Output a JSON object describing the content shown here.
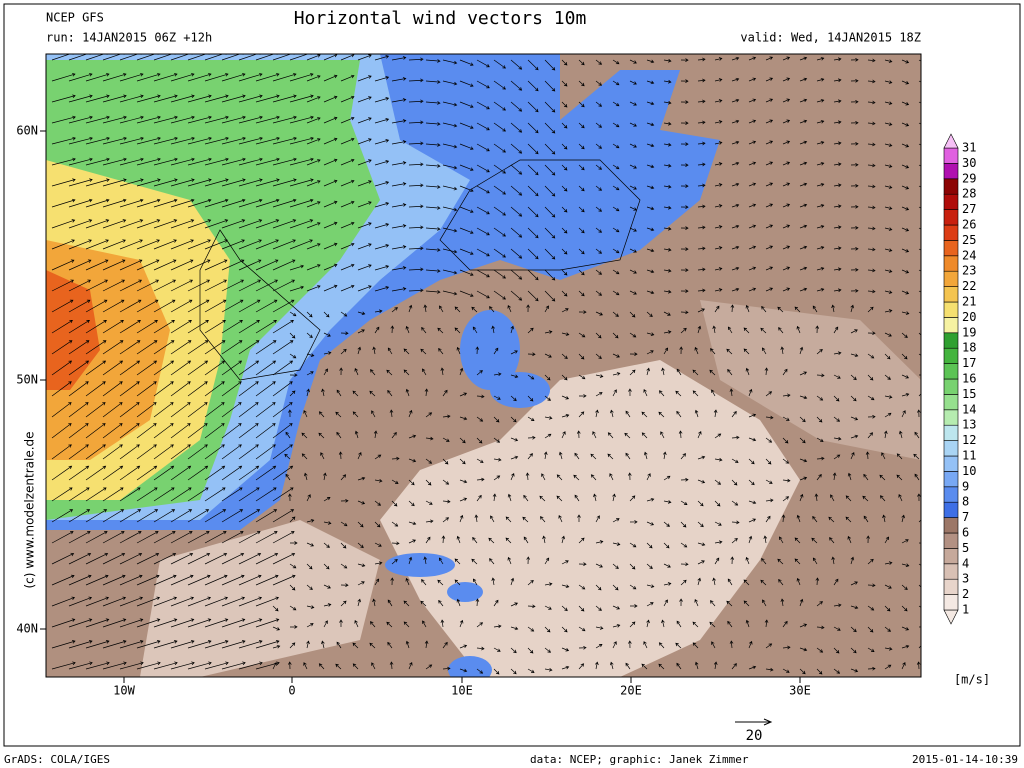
{
  "header": {
    "model": "NCEP GFS",
    "run": "run: 14JAN2015 06Z +12h",
    "title": "Horizontal wind vectors 10m",
    "valid": "valid: Wed, 14JAN2015 18Z"
  },
  "map": {
    "lat_labels": [
      "60N",
      "50N",
      "40N"
    ],
    "lon_labels": [
      "10W",
      "0",
      "10E",
      "20E",
      "30E"
    ],
    "watermark": "(c) www.modelzentrale.de",
    "reference_vector": "20"
  },
  "legend": {
    "unit": "[m/s]",
    "levels": [
      {
        "label": "1",
        "color": "#f4e9e3"
      },
      {
        "label": "2",
        "color": "#e8d5cb"
      },
      {
        "label": "3",
        "color": "#d8c0b4"
      },
      {
        "label": "4",
        "color": "#c6a99b"
      },
      {
        "label": "5",
        "color": "#b39183"
      },
      {
        "label": "6",
        "color": "#9c7767"
      },
      {
        "label": "7",
        "color": "#3e6fe6"
      },
      {
        "label": "8",
        "color": "#5a8cef"
      },
      {
        "label": "9",
        "color": "#78a8f4"
      },
      {
        "label": "10",
        "color": "#94c1f6"
      },
      {
        "label": "11",
        "color": "#a9d4f4"
      },
      {
        "label": "12",
        "color": "#bde6ee"
      },
      {
        "label": "13",
        "color": "#b6ecb0"
      },
      {
        "label": "14",
        "color": "#96e08e"
      },
      {
        "label": "15",
        "color": "#78d270"
      },
      {
        "label": "16",
        "color": "#5cc455"
      },
      {
        "label": "17",
        "color": "#44b43e"
      },
      {
        "label": "18",
        "color": "#30a030"
      },
      {
        "label": "19",
        "color": "#f6f2a2"
      },
      {
        "label": "20",
        "color": "#f6e070"
      },
      {
        "label": "21",
        "color": "#f4c450"
      },
      {
        "label": "22",
        "color": "#f2a63a"
      },
      {
        "label": "23",
        "color": "#ef8a2a"
      },
      {
        "label": "24",
        "color": "#e8641e"
      },
      {
        "label": "25",
        "color": "#dc3c14"
      },
      {
        "label": "26",
        "color": "#c8200e"
      },
      {
        "label": "27",
        "color": "#b00c0a"
      },
      {
        "label": "28",
        "color": "#8c0404"
      },
      {
        "label": "29",
        "color": "#b010b0"
      },
      {
        "label": "30",
        "color": "#e060e0"
      },
      {
        "label": "31",
        "color": "#f6c0f6"
      }
    ]
  },
  "footer": {
    "software": "GrADS: COLA/IGES",
    "credits": "data: NCEP; graphic: Janek Zimmer",
    "timestamp": "2015-01-14-10:39"
  }
}
